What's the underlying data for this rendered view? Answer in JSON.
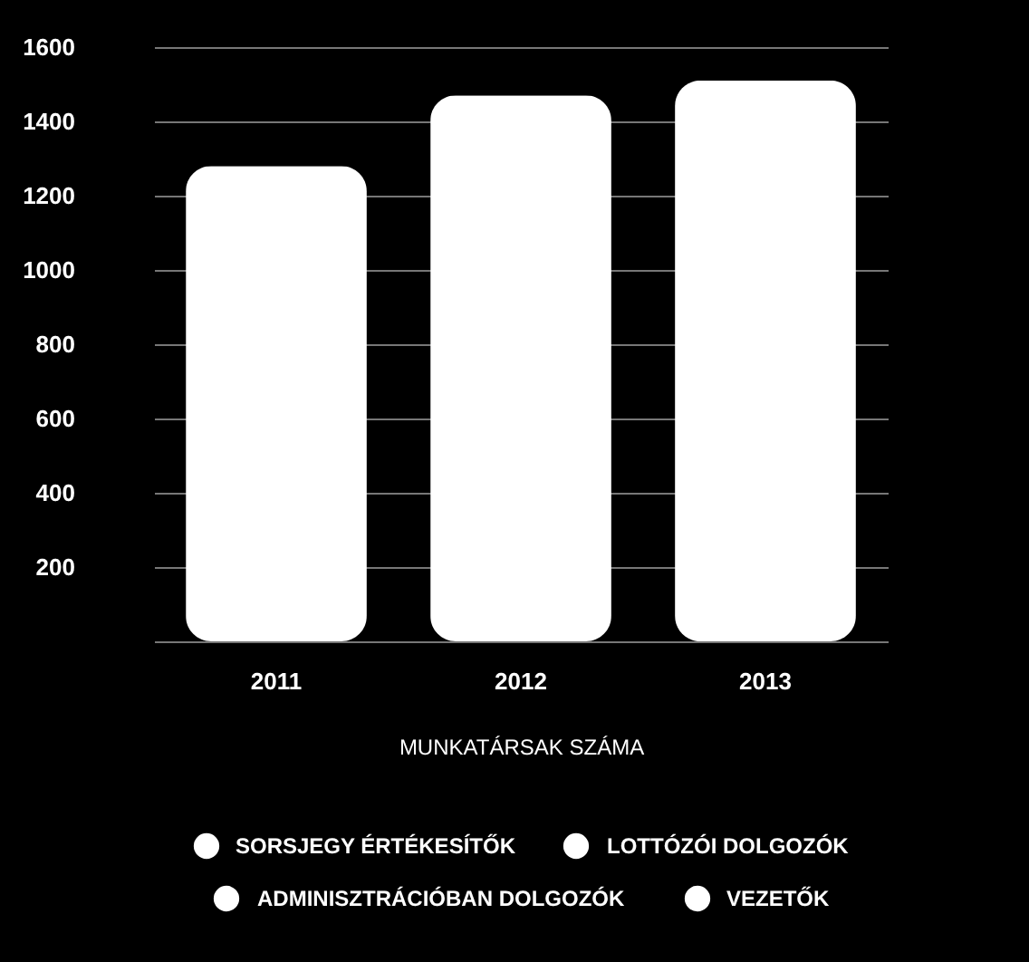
{
  "chart_data": {
    "type": "bar",
    "xlabel": "MUNKATÁRSAK SZÁMA",
    "categories": [
      "2011",
      "2012",
      "2013"
    ],
    "values": [
      1280,
      1470,
      1510
    ],
    "color": "#ffffff",
    "ylim": [
      0,
      1600
    ],
    "yticks": [
      {
        "value": 0,
        "label": null
      },
      200,
      400,
      600,
      800,
      1000,
      1200,
      1400,
      1600
    ],
    "grid": "y",
    "annotations": [
      "SORSJEGY ÉRTÉKESÍTŐK",
      "LOTTÓZÓI DOLGOZÓK",
      "ADMINISZTRÁCIÓBAN DOLGOZÓK",
      "VEZETŐK"
    ]
  }
}
